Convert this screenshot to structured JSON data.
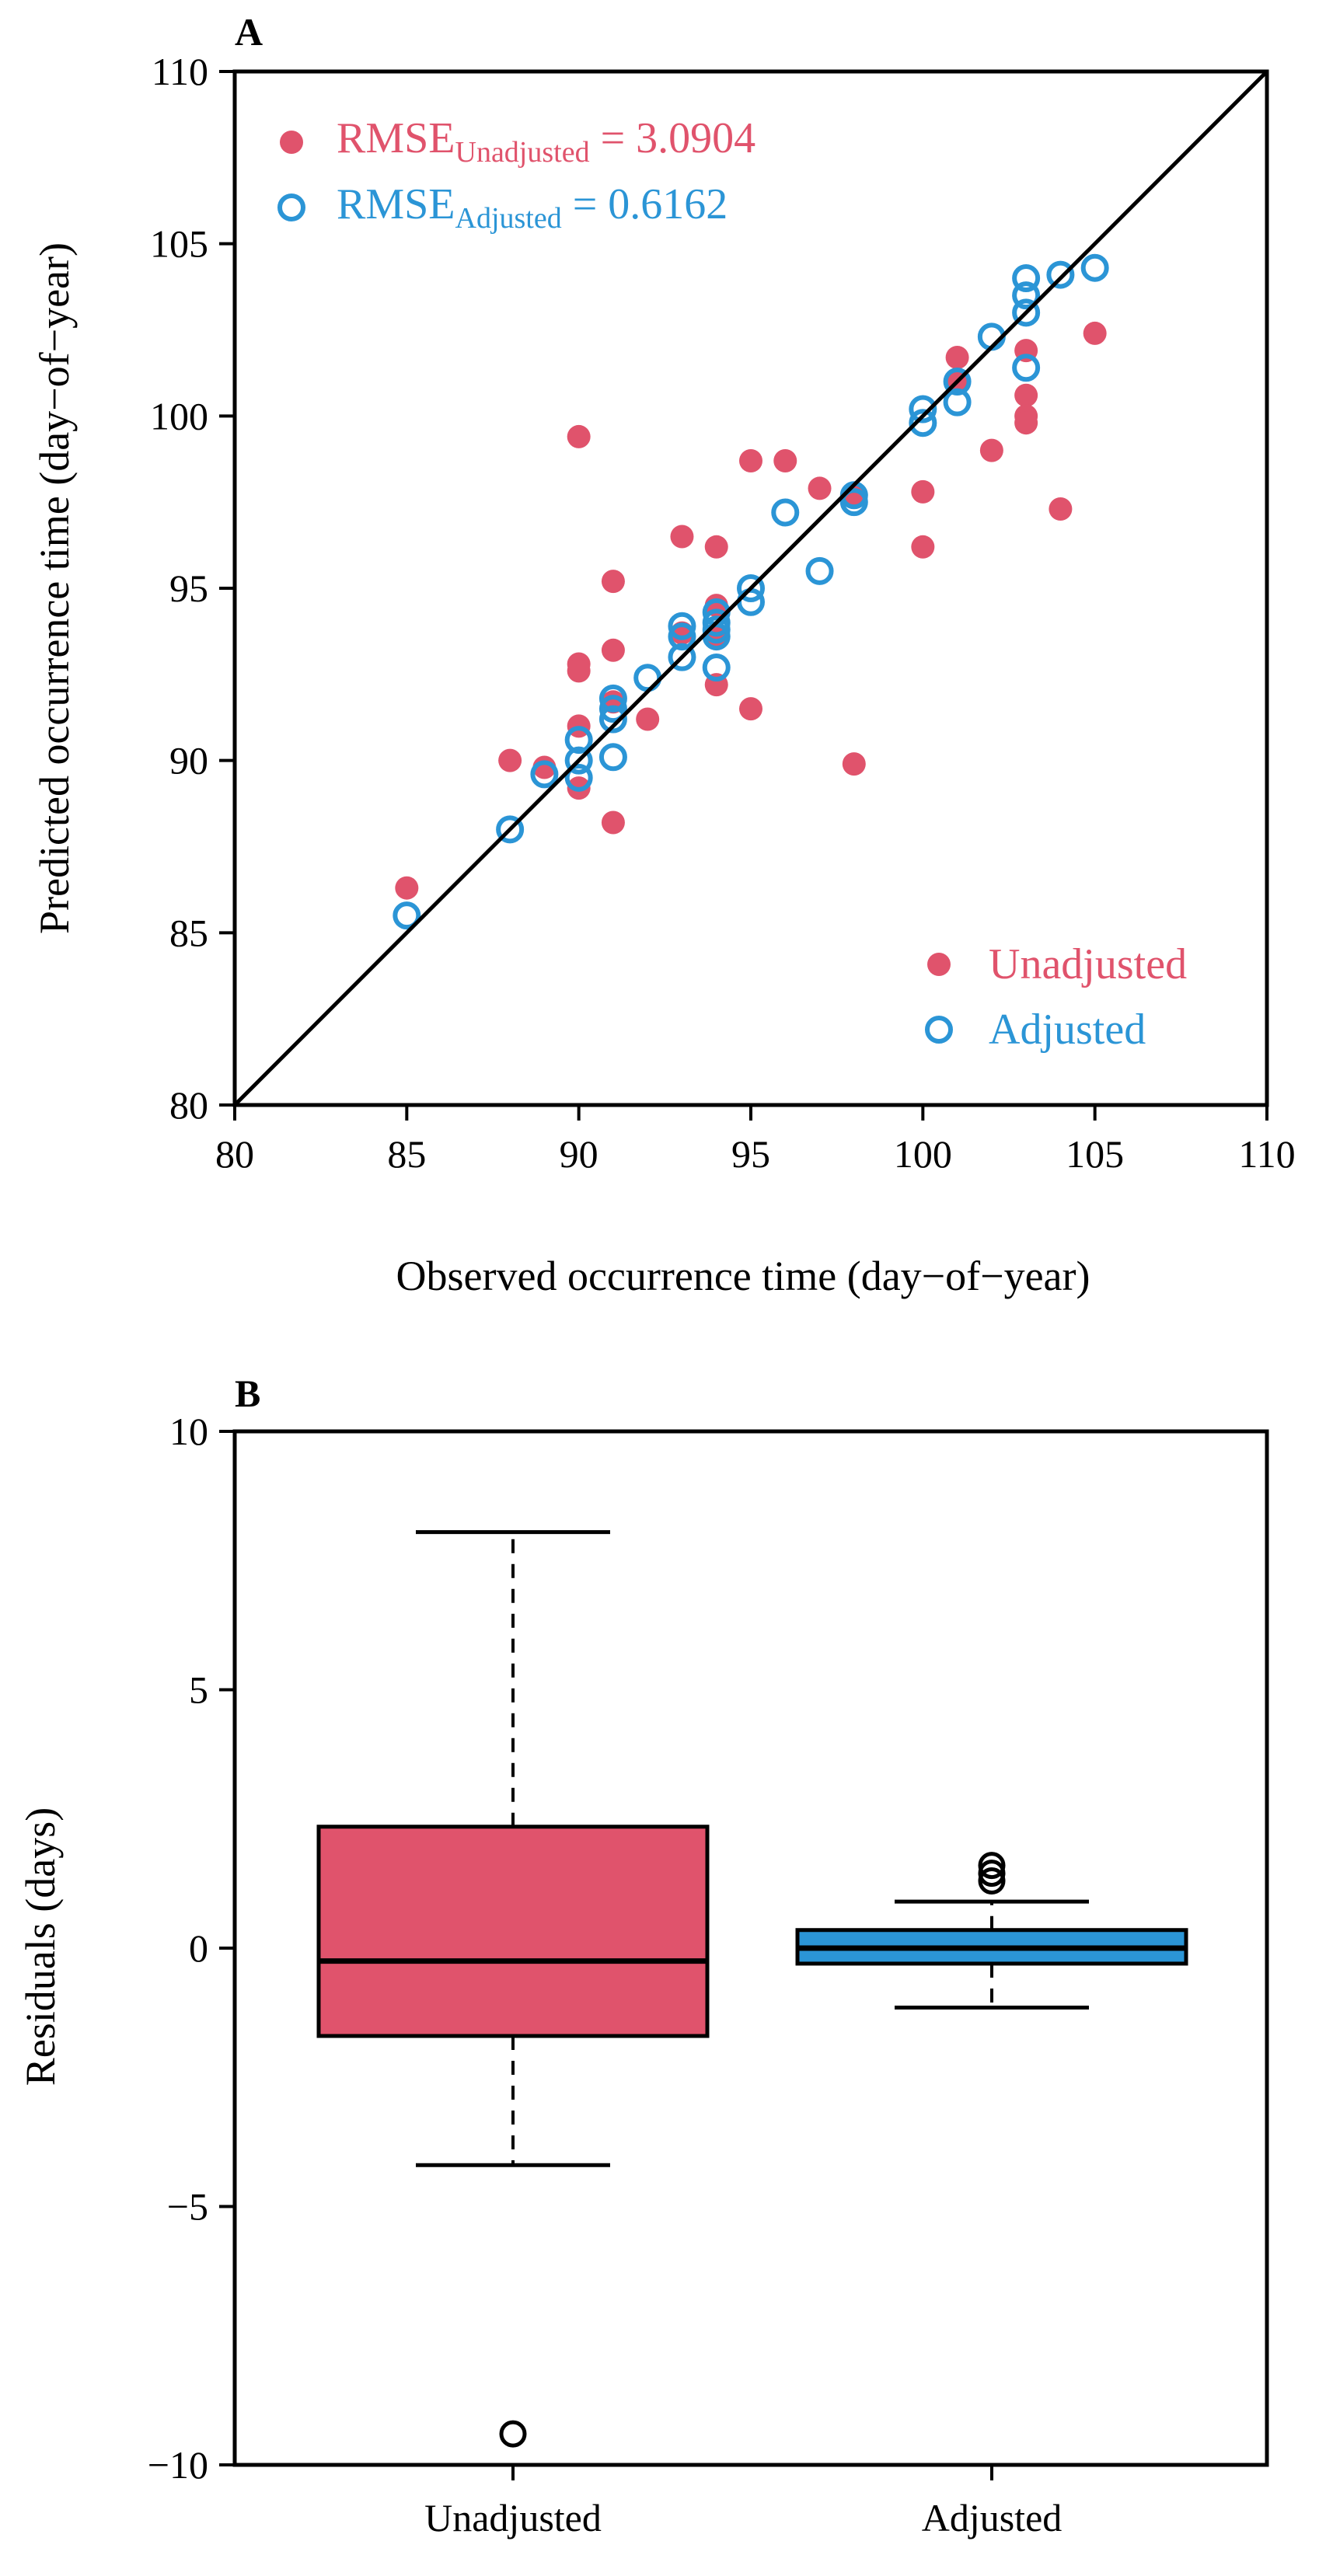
{
  "chart_data": [
    {
      "type": "scatter",
      "panel_label": "A",
      "xlabel": "Observed occurrence time (day−of−year)",
      "ylabel": "Predicted occurrence time (day−of−year)",
      "xlim": [
        80,
        110
      ],
      "ylim": [
        80,
        110
      ],
      "xticks": [
        80,
        85,
        90,
        95,
        100,
        105,
        110
      ],
      "yticks": [
        80,
        85,
        90,
        95,
        100,
        105,
        110
      ],
      "reference_line": "1:1",
      "colors": {
        "unadjusted": "#e0536c",
        "adjusted": "#2b95d6"
      },
      "stats": [
        {
          "prefix": "RMSE",
          "subscript": "Unadjusted",
          "value": " = 3.0904",
          "color": "#e0536c",
          "marker": "filled"
        },
        {
          "prefix": "RMSE",
          "subscript": "Adjusted",
          "value": " = 0.6162",
          "color": "#2b95d6",
          "marker": "open"
        }
      ],
      "legend": [
        {
          "label": "Unadjusted",
          "color": "#e0536c",
          "marker": "filled"
        },
        {
          "label": "Adjusted",
          "color": "#2b95d6",
          "marker": "open"
        }
      ],
      "series": [
        {
          "name": "Unadjusted",
          "points": [
            [
              85,
              86.3
            ],
            [
              88,
              90.0
            ],
            [
              89,
              89.8
            ],
            [
              90,
              99.4
            ],
            [
              90,
              92.8
            ],
            [
              90,
              92.6
            ],
            [
              90,
              91.0
            ],
            [
              90,
              89.2
            ],
            [
              91,
              95.2
            ],
            [
              91,
              93.2
            ],
            [
              91,
              91.7
            ],
            [
              91,
              88.2
            ],
            [
              92,
              91.2
            ],
            [
              93,
              96.5
            ],
            [
              93,
              93.7
            ],
            [
              94,
              96.2
            ],
            [
              94,
              94.5
            ],
            [
              94,
              93.6
            ],
            [
              94,
              92.2
            ],
            [
              95,
              98.7
            ],
            [
              95,
              91.5
            ],
            [
              96,
              98.7
            ],
            [
              97,
              97.9
            ],
            [
              98,
              97.7
            ],
            [
              98,
              89.9
            ],
            [
              100,
              97.8
            ],
            [
              100,
              96.2
            ],
            [
              101,
              101.7
            ],
            [
              101,
              101.0
            ],
            [
              102,
              99.0
            ],
            [
              103,
              101.9
            ],
            [
              103,
              100.6
            ],
            [
              103,
              100.0
            ],
            [
              103,
              99.8
            ],
            [
              104,
              97.3
            ],
            [
              105,
              102.4
            ]
          ]
        },
        {
          "name": "Adjusted",
          "points": [
            [
              85,
              85.5
            ],
            [
              88,
              88.0
            ],
            [
              89,
              89.6
            ],
            [
              90,
              90.6
            ],
            [
              90,
              90.0
            ],
            [
              90,
              89.5
            ],
            [
              91,
              91.8
            ],
            [
              91,
              91.5
            ],
            [
              91,
              91.2
            ],
            [
              91,
              90.1
            ],
            [
              92,
              92.4
            ],
            [
              93,
              93.9
            ],
            [
              93,
              93.6
            ],
            [
              93,
              93.0
            ],
            [
              94,
              94.3
            ],
            [
              94,
              94.0
            ],
            [
              94,
              93.8
            ],
            [
              94,
              93.6
            ],
            [
              94,
              92.7
            ],
            [
              95,
              95.0
            ],
            [
              95,
              94.6
            ],
            [
              96,
              97.2
            ],
            [
              97,
              95.5
            ],
            [
              98,
              97.7
            ],
            [
              98,
              97.5
            ],
            [
              100,
              100.2
            ],
            [
              100,
              99.8
            ],
            [
              101,
              101.0
            ],
            [
              101,
              100.4
            ],
            [
              102,
              102.3
            ],
            [
              103,
              104.0
            ],
            [
              103,
              103.5
            ],
            [
              103,
              103.0
            ],
            [
              103,
              101.4
            ],
            [
              104,
              104.1
            ],
            [
              105,
              104.3
            ]
          ]
        }
      ]
    },
    {
      "type": "box",
      "panel_label": "B",
      "xlabel": "",
      "ylabel": "Residuals (days)",
      "ylim": [
        -10,
        10
      ],
      "yticks": [
        -10,
        -5,
        0,
        5,
        10
      ],
      "ytick_labels": [
        "−10",
        "−5",
        "0",
        "5",
        "10"
      ],
      "categories": [
        "Unadjusted",
        "Adjusted"
      ],
      "boxes": [
        {
          "name": "Unadjusted",
          "color": "#e0536c",
          "whisker_low": -4.2,
          "q1": -1.7,
          "median": -0.25,
          "q3": 2.35,
          "whisker_high": 8.05,
          "outliers": [
            -9.4
          ]
        },
        {
          "name": "Adjusted",
          "color": "#2b95d6",
          "whisker_low": -1.15,
          "q1": -0.3,
          "median": 0.0,
          "q3": 0.35,
          "whisker_high": 0.9,
          "outliers": [
            1.3,
            1.45,
            1.6
          ]
        }
      ]
    }
  ]
}
